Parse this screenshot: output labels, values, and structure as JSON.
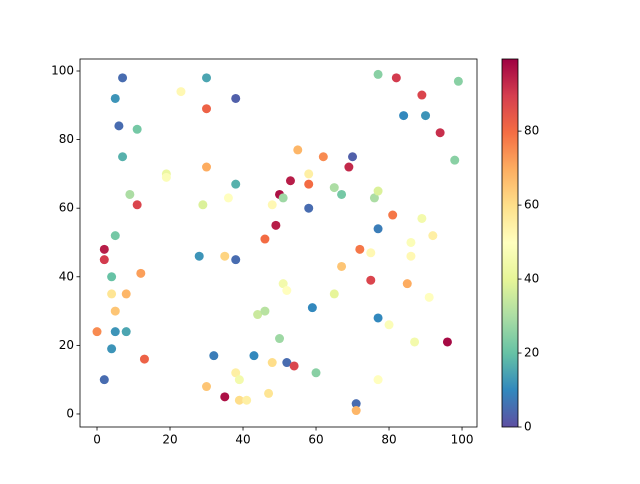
{
  "chart_data": {
    "type": "scatter",
    "x": [
      7,
      30,
      38,
      23,
      5,
      30,
      6,
      11,
      7,
      19,
      19,
      9,
      11,
      30,
      29,
      36,
      38,
      2,
      2,
      5,
      4,
      12,
      4,
      8,
      5,
      0,
      5,
      8,
      4,
      2,
      13,
      28,
      35,
      38,
      32,
      30,
      35,
      38,
      39,
      39,
      41,
      43,
      44,
      46,
      47,
      48,
      46,
      48,
      49,
      50,
      51,
      50,
      51,
      52,
      52,
      54,
      53,
      55,
      58,
      58,
      58,
      59,
      60,
      62,
      65,
      65,
      67,
      67,
      69,
      70,
      71,
      71,
      72,
      75,
      75,
      76,
      77,
      77,
      77,
      77,
      77,
      80,
      81,
      82,
      84,
      85,
      86,
      86,
      87,
      89,
      89,
      90,
      91,
      92,
      94,
      96,
      98,
      99
    ],
    "y": [
      98,
      98,
      92,
      94,
      92,
      89,
      84,
      83,
      75,
      70,
      69,
      64,
      61,
      72,
      61,
      63,
      67,
      48,
      45,
      52,
      40,
      41,
      35,
      35,
      30,
      24,
      24,
      24,
      19,
      10,
      16,
      46,
      46,
      45,
      17,
      8,
      5,
      12,
      10,
      4,
      4,
      17,
      29,
      30,
      6,
      15,
      51,
      61,
      55,
      64,
      63,
      22,
      38,
      36,
      15,
      14,
      68,
      77,
      70,
      67,
      60,
      31,
      12,
      75,
      66,
      35,
      64,
      43,
      72,
      75,
      3,
      1,
      48,
      47,
      39,
      63,
      65,
      99,
      54,
      28,
      10,
      26,
      58,
      98,
      87,
      38,
      50,
      46,
      21,
      57,
      93,
      87,
      34,
      52,
      82,
      21,
      74,
      97
    ],
    "c": [
      5,
      15,
      3,
      52,
      12,
      82,
      5,
      22,
      17,
      42,
      48,
      30,
      88,
      70,
      38,
      50,
      17,
      95,
      90,
      22,
      20,
      72,
      58,
      68,
      65,
      75,
      12,
      15,
      12,
      5,
      82,
      12,
      62,
      5,
      8,
      65,
      97,
      55,
      45,
      60,
      55,
      10,
      35,
      32,
      58,
      60,
      80,
      52,
      95,
      97,
      28,
      28,
      45,
      50,
      5,
      88,
      95,
      68,
      55,
      80,
      5,
      10,
      25,
      75,
      30,
      40,
      22,
      65,
      93,
      3,
      5,
      68,
      78,
      52,
      88,
      30,
      38,
      25,
      8,
      10,
      50,
      48,
      78,
      90,
      10,
      70,
      48,
      52,
      45,
      45,
      88,
      12,
      50,
      55,
      92,
      98,
      25,
      25
    ],
    "xlim": [
      -4.66,
      104.1
    ],
    "ylim": [
      -3.8,
      103.5
    ],
    "xticks": [
      0,
      20,
      40,
      60,
      80,
      100
    ],
    "yticks": [
      0,
      20,
      40,
      60,
      80,
      100
    ],
    "colormap": "Spectral_r",
    "clim": [
      0,
      99.5
    ],
    "cticks": [
      0,
      20,
      40,
      60,
      80
    ]
  }
}
